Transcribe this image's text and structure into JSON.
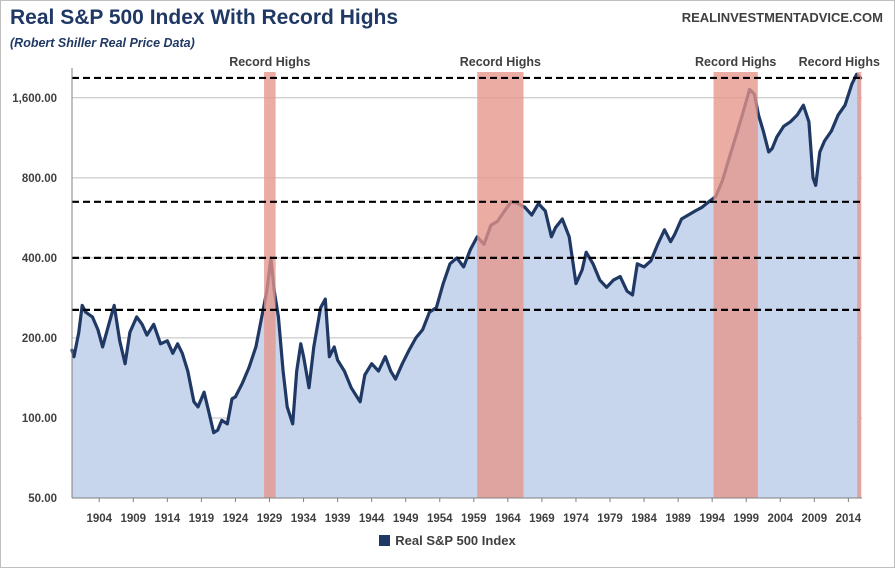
{
  "header": {
    "title": "Real S&P 500 Index With Record Highs",
    "subtitle": "(Robert Shiller Real Price Data)",
    "source": "REALINVESTMENTADVICE.COM"
  },
  "colors": {
    "line": "#1f3864",
    "area": "#c7d6ec",
    "highlight": "#e6958a",
    "reference_line": "#000000",
    "grid": "#bfbfbf"
  },
  "chart_data": {
    "type": "area",
    "title": "Real S&P 500 Index With Record Highs",
    "subtitle": "(Robert Shiller Real Price Data)",
    "xlabel": "",
    "ylabel": "",
    "xlim": [
      1900,
      2016
    ],
    "ylim": [
      50,
      2000
    ],
    "yscale": "log",
    "yticks": [
      50,
      100,
      200,
      400,
      800,
      1600
    ],
    "ytick_labels": [
      "50.00",
      "100.00",
      "200.00",
      "400.00",
      "800.00",
      "1,600.00"
    ],
    "xticks": [
      1904,
      1909,
      1914,
      1919,
      1924,
      1929,
      1934,
      1939,
      1944,
      1949,
      1954,
      1959,
      1964,
      1969,
      1974,
      1979,
      1984,
      1989,
      1994,
      1999,
      2004,
      2009,
      2014
    ],
    "xtick_labels": [
      "1904",
      "1909",
      "1914",
      "1919",
      "1924",
      "1929",
      "1934",
      "1939",
      "1944",
      "1949",
      "1954",
      "1959",
      "1964",
      "1969",
      "1974",
      "1979",
      "1984",
      "1989",
      "1994",
      "1999",
      "2004",
      "2009",
      "2014"
    ],
    "grid": true,
    "legend_position": "bottom",
    "series": [
      {
        "name": "Real S&P 500 Index",
        "x": [
          1900,
          1900.3,
          1901,
          1901.5,
          1902,
          1903,
          1903.8,
          1904.5,
          1905.5,
          1906.2,
          1907,
          1907.8,
          1908.5,
          1909.5,
          1910.3,
          1911,
          1912,
          1913,
          1914,
          1914.8,
          1915.5,
          1916.2,
          1917,
          1917.9,
          1918.5,
          1919.4,
          1920.1,
          1920.8,
          1921.4,
          1922,
          1922.8,
          1923.5,
          1924,
          1925,
          1926,
          1927,
          1928,
          1928.6,
          1929.2,
          1929.7,
          1930.3,
          1931,
          1931.6,
          1932.4,
          1933,
          1933.6,
          1934,
          1934.8,
          1935.5,
          1936.5,
          1937.2,
          1937.8,
          1938.5,
          1939,
          1940,
          1941,
          1942.3,
          1943,
          1944,
          1945,
          1946,
          1946.8,
          1947.5,
          1948.5,
          1949.5,
          1950.5,
          1951.5,
          1952.5,
          1953.5,
          1954.5,
          1955.5,
          1956.5,
          1957.5,
          1958.5,
          1959.5,
          1960.5,
          1961.5,
          1962.5,
          1963.5,
          1964.5,
          1965.5,
          1966.5,
          1967.5,
          1968.5,
          1969.5,
          1970.4,
          1971,
          1972,
          1973,
          1974,
          1974.9,
          1975.5,
          1976.5,
          1977.5,
          1978.5,
          1979.5,
          1980.5,
          1981.5,
          1982.3,
          1983,
          1984,
          1985,
          1986,
          1987,
          1987.9,
          1988.5,
          1989.5,
          1990.5,
          1991.5,
          1992.5,
          1993.5,
          1994.5,
          1995.5,
          1996.5,
          1997.5,
          1998.5,
          1999.5,
          2000.2,
          2000.8,
          2001.5,
          2002.3,
          2002.8,
          2003.5,
          2004.5,
          2005.5,
          2006.5,
          2007.4,
          2008.2,
          2008.8,
          2009.2,
          2009.8,
          2010.5,
          2011.5,
          2012.5,
          2013.5,
          2014.5,
          2015.2,
          2015.8
        ],
        "values": [
          180,
          170,
          210,
          265,
          250,
          240,
          215,
          185,
          230,
          265,
          195,
          160,
          210,
          240,
          225,
          205,
          225,
          190,
          195,
          175,
          190,
          175,
          150,
          115,
          110,
          125,
          105,
          88,
          90,
          98,
          95,
          118,
          120,
          135,
          155,
          185,
          250,
          300,
          400,
          300,
          240,
          150,
          110,
          95,
          150,
          190,
          170,
          130,
          185,
          260,
          280,
          170,
          185,
          165,
          150,
          130,
          115,
          145,
          160,
          150,
          170,
          150,
          140,
          160,
          180,
          200,
          215,
          250,
          260,
          320,
          380,
          400,
          370,
          430,
          480,
          450,
          530,
          550,
          600,
          650,
          640,
          620,
          580,
          640,
          600,
          480,
          520,
          560,
          480,
          320,
          360,
          420,
          380,
          330,
          310,
          330,
          340,
          300,
          290,
          380,
          370,
          390,
          450,
          510,
          460,
          490,
          560,
          580,
          600,
          620,
          650,
          680,
          780,
          950,
          1150,
          1400,
          1720,
          1650,
          1380,
          1200,
          1000,
          1030,
          1140,
          1250,
          1300,
          1380,
          1500,
          1300,
          800,
          750,
          1000,
          1100,
          1200,
          1380,
          1500,
          1800,
          1960,
          1900
        ]
      }
    ],
    "highlight_bands": [
      {
        "label": "Record Highs",
        "x0": 1928.2,
        "x1": 1929.9
      },
      {
        "label": "Record Highs",
        "x0": 1959.5,
        "x1": 1966.3
      },
      {
        "label": "Record Highs",
        "x0": 1994.2,
        "x1": 2000.7
      },
      {
        "label": "Record Highs",
        "x0": 2015.3,
        "x1": 2015.9
      }
    ],
    "reference_lines": [
      1900,
      650,
      400,
      255
    ]
  },
  "legend": {
    "label": "Real S&P 500 Index"
  }
}
